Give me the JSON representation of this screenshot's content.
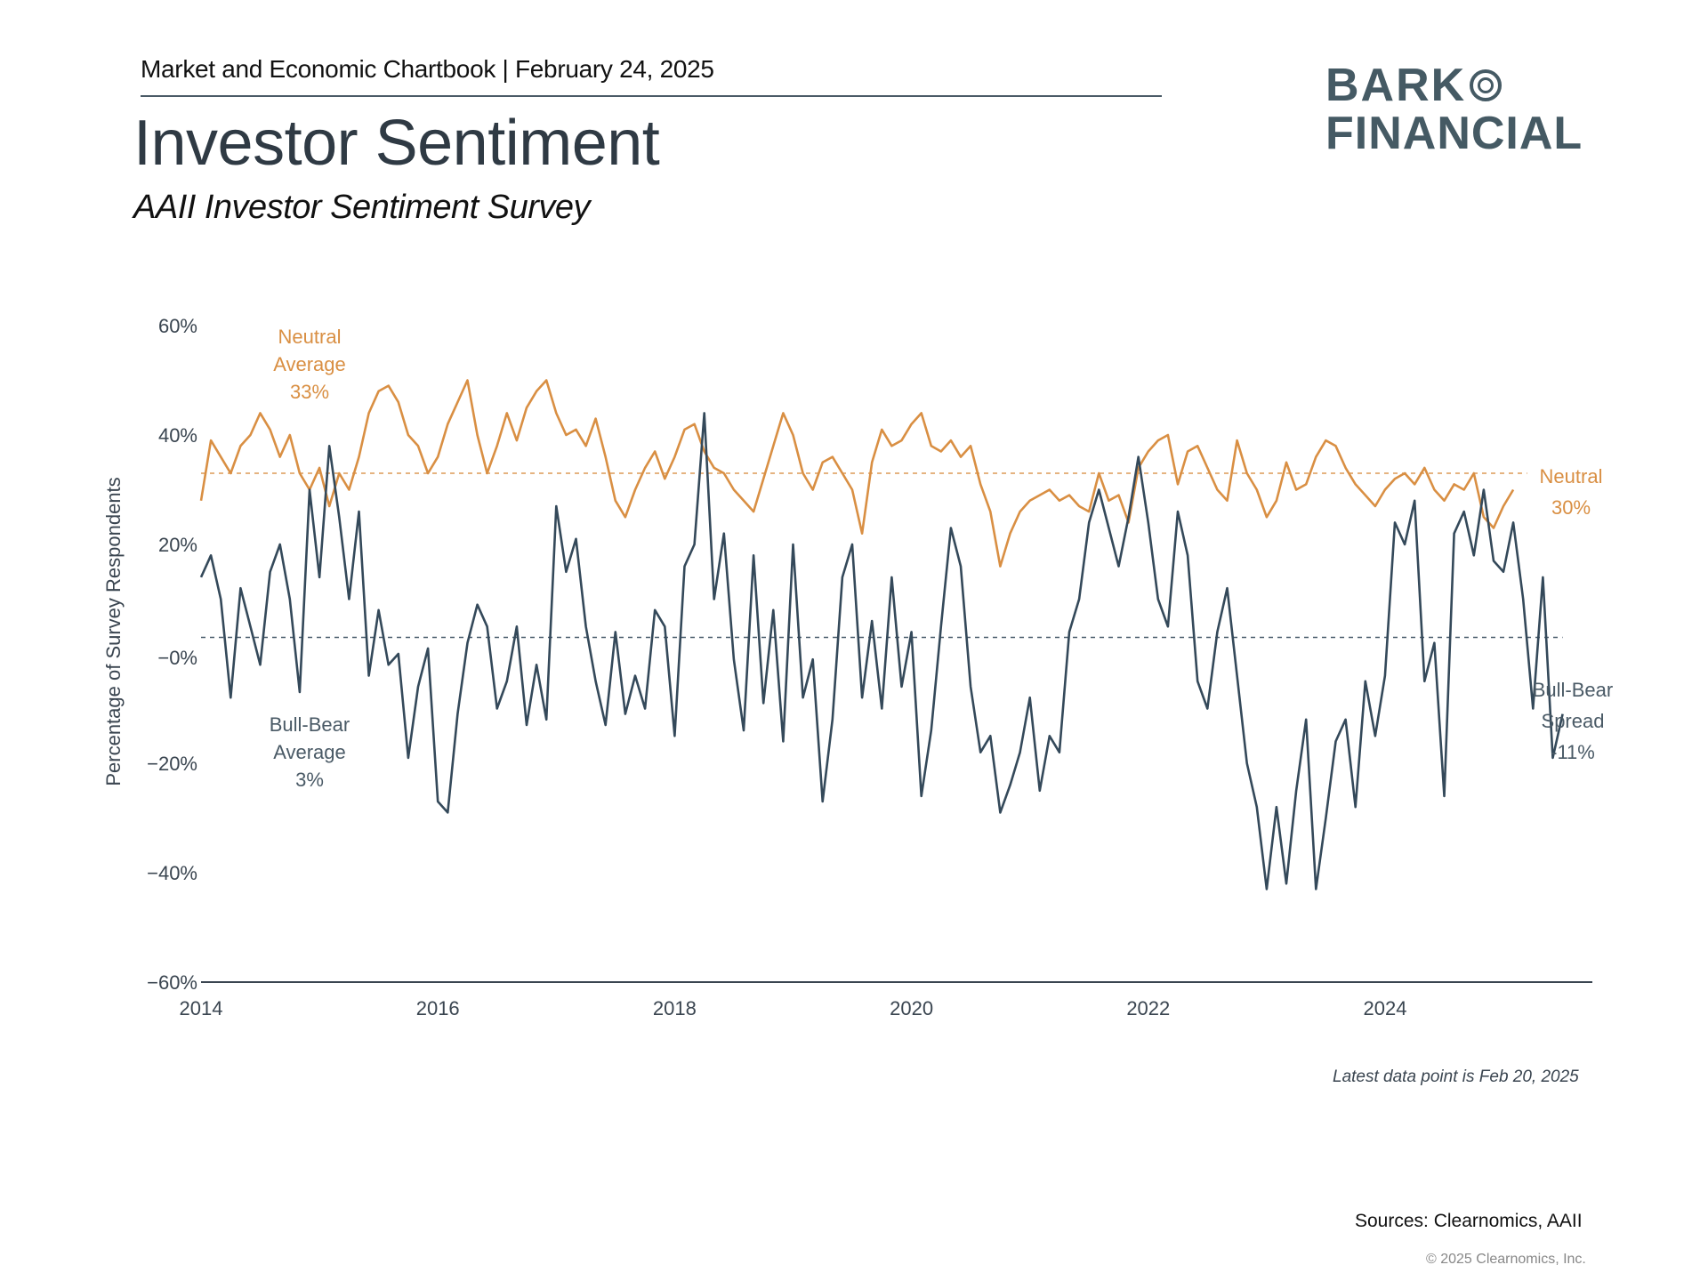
{
  "header": {
    "chartbook": "Market and Economic Chartbook | February 24, 2025",
    "title": "Investor Sentiment",
    "subtitle": "AAII Investor Sentiment Survey"
  },
  "logo": {
    "line1": "BARK",
    "line2": "FINANCIAL"
  },
  "footer": {
    "note": "Latest data point is Feb 20, 2025",
    "sources": "Sources: Clearnomics,  AAII",
    "copyright": "© 2025 Clearnomics, Inc."
  },
  "colors": {
    "neutral": "#d98f43",
    "spread": "#34495a",
    "axis": "#3a4550",
    "text": "#2f3a44"
  },
  "chart_data": {
    "type": "line",
    "title": "AAII Investor Sentiment Survey",
    "xlabel": "",
    "ylabel": "Percentage of Survey Respondents",
    "ylim": [
      -60,
      60
    ],
    "xlim": [
      2014.0,
      2025.9
    ],
    "yticks": [
      {
        "value": 60,
        "label": "60%"
      },
      {
        "value": 40,
        "label": "40%"
      },
      {
        "value": 20,
        "label": "20%"
      },
      {
        "value": 0,
        "label": "−0%"
      },
      {
        "value": -20,
        "label": "−20%"
      },
      {
        "value": -40,
        "label": "−40%"
      },
      {
        "value": -60,
        "label": "−60%"
      }
    ],
    "xticks": [
      {
        "value": 2014,
        "label": "2014"
      },
      {
        "value": 2016,
        "label": "2016"
      },
      {
        "value": 2018,
        "label": "2018"
      },
      {
        "value": 2020,
        "label": "2020"
      },
      {
        "value": 2022,
        "label": "2022"
      },
      {
        "value": 2024,
        "label": "2024"
      }
    ],
    "grid": false,
    "x_start": 2014.0,
    "x_step_years": 0.08333,
    "series": [
      {
        "name": "Neutral",
        "color": "#d98f43",
        "average": 33,
        "values": [
          28,
          39,
          36,
          33,
          38,
          40,
          44,
          41,
          36,
          40,
          33,
          30,
          34,
          27,
          33,
          30,
          36,
          44,
          48,
          49,
          46,
          40,
          38,
          33,
          36,
          42,
          46,
          50,
          40,
          33,
          38,
          44,
          39,
          45,
          48,
          50,
          44,
          40,
          41,
          38,
          43,
          36,
          28,
          25,
          30,
          34,
          37,
          32,
          36,
          41,
          42,
          37,
          34,
          33,
          30,
          28,
          26,
          32,
          38,
          44,
          40,
          33,
          30,
          35,
          36,
          33,
          30,
          22,
          35,
          41,
          38,
          39,
          42,
          44,
          38,
          37,
          39,
          36,
          38,
          31,
          26,
          16,
          22,
          26,
          28,
          29,
          30,
          28,
          29,
          27,
          26,
          33,
          28,
          29,
          24,
          34,
          37,
          39,
          40,
          31,
          37,
          38,
          34,
          30,
          28,
          39,
          33,
          30,
          25,
          28,
          35,
          30,
          31,
          36,
          39,
          38,
          34,
          31,
          29,
          27,
          30,
          32,
          33,
          31,
          34,
          30,
          28,
          31,
          30,
          33,
          25,
          23,
          27,
          30
        ]
      },
      {
        "name": "Bull-Bear Spread",
        "color": "#34495a",
        "average": 3,
        "values": [
          14,
          18,
          10,
          -8,
          12,
          5,
          -2,
          15,
          20,
          10,
          -7,
          30,
          14,
          38,
          25,
          10,
          26,
          -4,
          8,
          -2,
          0,
          -19,
          -6,
          1,
          -27,
          -29,
          -11,
          2,
          9,
          5,
          -10,
          -5,
          5,
          -13,
          -2,
          -12,
          27,
          15,
          21,
          5,
          -5,
          -13,
          4,
          -11,
          -4,
          -10,
          8,
          5,
          -15,
          16,
          20,
          44,
          10,
          22,
          -1,
          -14,
          18,
          -9,
          8,
          -16,
          20,
          -8,
          -1,
          -27,
          -12,
          14,
          20,
          -8,
          6,
          -10,
          14,
          -6,
          4,
          -26,
          -14,
          5,
          23,
          16,
          -6,
          -18,
          -15,
          -29,
          -24,
          -18,
          -8,
          -25,
          -15,
          -18,
          4,
          10,
          24,
          30,
          23,
          16,
          25,
          36,
          24,
          10,
          5,
          26,
          18,
          -5,
          -10,
          4,
          12,
          -4,
          -20,
          -28,
          -43,
          -28,
          -42,
          -25,
          -12,
          -43,
          -30,
          -16,
          -12,
          -28,
          -5,
          -15,
          -4,
          24,
          20,
          28,
          -5,
          2,
          -26,
          22,
          26,
          18,
          30,
          17,
          15,
          24,
          10,
          -10,
          14,
          -19,
          -11
        ]
      }
    ],
    "annotations": [
      {
        "text": [
          "Neutral",
          "Average",
          "33%"
        ],
        "series": "Neutral",
        "anchor": "top-left"
      },
      {
        "text": [
          "Bull-Bear",
          "Average",
          "3%"
        ],
        "series": "Bull-Bear Spread",
        "anchor": "left"
      },
      {
        "text": [
          "Neutral",
          "30%"
        ],
        "series": "Neutral",
        "anchor": "right"
      },
      {
        "text": [
          "Bull-Bear",
          "Spread",
          "-11%"
        ],
        "series": "Bull-Bear Spread",
        "anchor": "right"
      }
    ],
    "legend": "none"
  }
}
